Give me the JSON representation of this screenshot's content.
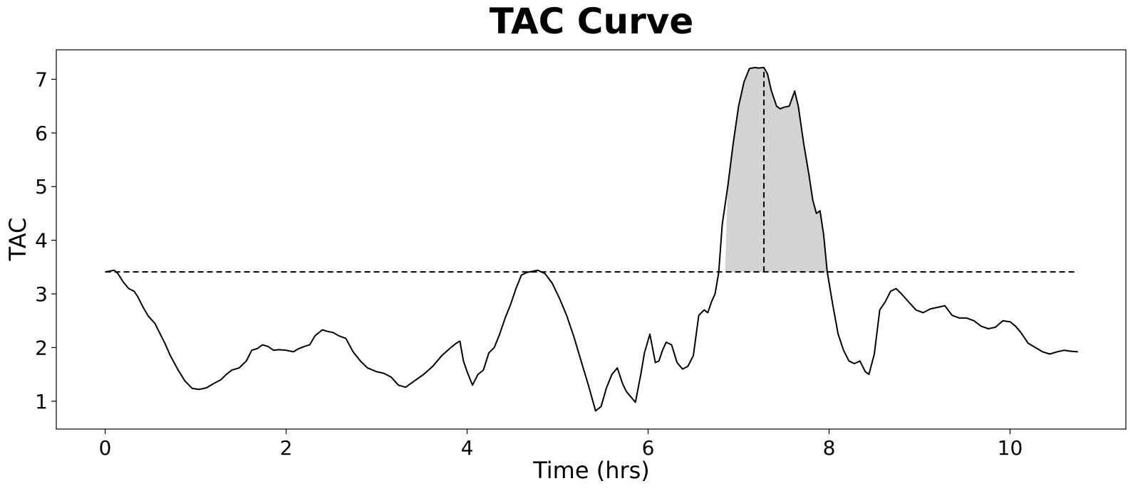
{
  "chart_data": {
    "type": "line",
    "title": "TAC Curve",
    "xlabel": "Time (hrs)",
    "ylabel": "TAC",
    "xlim": [
      -0.54,
      11.28
    ],
    "ylim": [
      0.48,
      7.55
    ],
    "xticks": [
      0,
      2,
      4,
      6,
      8,
      10
    ],
    "yticks": [
      1,
      2,
      3,
      4,
      5,
      6,
      7
    ],
    "grid": false,
    "line_color": "#000000",
    "fill_color": "#d3d3d3",
    "threshold": {
      "value": 3.41,
      "x_start": 0.0,
      "x_end": 10.75,
      "style": "dashed"
    },
    "peak_marker": {
      "x": 7.28,
      "y": 7.22,
      "style": "dashed"
    },
    "shaded_region": {
      "x_start": 6.85,
      "x_end": 7.98,
      "above": 3.41
    },
    "series": [
      {
        "x": [
          0.0,
          0.1,
          0.14,
          0.2,
          0.26,
          0.32,
          0.36,
          0.42,
          0.48,
          0.55,
          0.6,
          0.66,
          0.72,
          0.8,
          0.88,
          0.96,
          1.04,
          1.12,
          1.2,
          1.28,
          1.34,
          1.4,
          1.48,
          1.56,
          1.62,
          1.68,
          1.74,
          1.8,
          1.86,
          1.92,
          2.0,
          2.08,
          2.14,
          2.2,
          2.26,
          2.32,
          2.4,
          2.46,
          2.52,
          2.58,
          2.66,
          2.74,
          2.82,
          2.9,
          3.0,
          3.08,
          3.16,
          3.24,
          3.32,
          3.42,
          3.52,
          3.62,
          3.72,
          3.82,
          3.88,
          3.92,
          3.96,
          4.0,
          4.06,
          4.12,
          4.18,
          4.24,
          4.3,
          4.36,
          4.42,
          4.48,
          4.54,
          4.6,
          4.66,
          4.72,
          4.78,
          4.86,
          4.94,
          5.02,
          5.1,
          5.18,
          5.26,
          5.34,
          5.42,
          5.48,
          5.54,
          5.6,
          5.66,
          5.72,
          5.76,
          5.8,
          5.86,
          5.92,
          5.96,
          6.02,
          6.08,
          6.12,
          6.16,
          6.2,
          6.26,
          6.32,
          6.38,
          6.44,
          6.5,
          6.56,
          6.62,
          6.66,
          6.7,
          6.74,
          6.78,
          6.82,
          6.88,
          6.94,
          7.0,
          7.06,
          7.12,
          7.18,
          7.22,
          7.28,
          7.32,
          7.36,
          7.42,
          7.46,
          7.5,
          7.56,
          7.62,
          7.66,
          7.72,
          7.78,
          7.82,
          7.86,
          7.9,
          7.94,
          7.98,
          8.04,
          8.1,
          8.16,
          8.22,
          8.28,
          8.34,
          8.4,
          8.44,
          8.5,
          8.56,
          8.62,
          8.68,
          8.74,
          8.8,
          8.88,
          8.96,
          9.04,
          9.12,
          9.2,
          9.28,
          9.36,
          9.44,
          9.52,
          9.6,
          9.68,
          9.76,
          9.84,
          9.92,
          10.0,
          10.06,
          10.12,
          10.2,
          10.28,
          10.36,
          10.44,
          10.52,
          10.6,
          10.68,
          10.75
        ],
        "values": [
          3.41,
          3.44,
          3.38,
          3.22,
          3.1,
          3.05,
          2.95,
          2.75,
          2.58,
          2.45,
          2.28,
          2.08,
          1.85,
          1.6,
          1.38,
          1.24,
          1.22,
          1.25,
          1.33,
          1.4,
          1.5,
          1.58,
          1.62,
          1.75,
          1.95,
          1.98,
          2.05,
          2.02,
          1.95,
          1.96,
          1.95,
          1.92,
          1.98,
          2.02,
          2.05,
          2.22,
          2.33,
          2.3,
          2.28,
          2.22,
          2.17,
          1.92,
          1.75,
          1.62,
          1.55,
          1.52,
          1.45,
          1.3,
          1.26,
          1.38,
          1.5,
          1.65,
          1.85,
          2.0,
          2.08,
          2.12,
          1.75,
          1.55,
          1.3,
          1.5,
          1.58,
          1.9,
          2.0,
          2.25,
          2.55,
          2.8,
          3.1,
          3.35,
          3.4,
          3.42,
          3.44,
          3.38,
          3.2,
          2.92,
          2.6,
          2.2,
          1.75,
          1.3,
          0.82,
          0.9,
          1.25,
          1.5,
          1.62,
          1.32,
          1.18,
          1.1,
          0.98,
          1.5,
          1.9,
          2.25,
          1.72,
          1.75,
          1.95,
          2.1,
          2.05,
          1.72,
          1.6,
          1.65,
          1.85,
          2.6,
          2.7,
          2.65,
          2.85,
          3.0,
          3.4,
          4.3,
          5.0,
          5.8,
          6.5,
          6.95,
          7.2,
          7.22,
          7.21,
          7.22,
          7.1,
          6.8,
          6.5,
          6.45,
          6.48,
          6.5,
          6.78,
          6.5,
          5.8,
          5.2,
          4.75,
          4.5,
          4.55,
          4.1,
          3.41,
          2.8,
          2.25,
          1.95,
          1.75,
          1.7,
          1.75,
          1.55,
          1.5,
          1.88,
          2.7,
          2.85,
          3.05,
          3.1,
          3.0,
          2.85,
          2.7,
          2.65,
          2.72,
          2.75,
          2.78,
          2.6,
          2.55,
          2.55,
          2.5,
          2.4,
          2.35,
          2.38,
          2.5,
          2.48,
          2.4,
          2.28,
          2.08,
          2.0,
          1.92,
          1.88,
          1.92,
          1.95,
          1.93,
          1.92
        ]
      }
    ]
  }
}
